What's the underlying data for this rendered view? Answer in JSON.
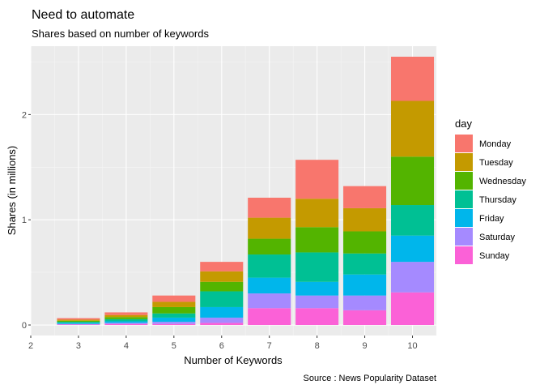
{
  "chart_data": {
    "type": "bar",
    "stacked": true,
    "title": "Need to automate",
    "subtitle": "Shares based on number of keywords",
    "xlabel": "Number of Keywords",
    "ylabel": "Shares (in millions)",
    "caption": "Source : News Popularity Dataset",
    "legend_title": "day",
    "legend_position": "right",
    "grid": true,
    "xlim": [
      2,
      10.5
    ],
    "ylim": [
      -0.1,
      2.65
    ],
    "x_ticks": [
      2,
      3,
      4,
      5,
      6,
      7,
      8,
      9,
      10
    ],
    "y_ticks": [
      0,
      1,
      2
    ],
    "categories": [
      3,
      4,
      5,
      6,
      7,
      8,
      9,
      10
    ],
    "series": [
      {
        "name": "Monday",
        "color": "#F8766D",
        "values": [
          0.015,
          0.025,
          0.06,
          0.09,
          0.19,
          0.37,
          0.21,
          0.42
        ]
      },
      {
        "name": "Tuesday",
        "color": "#C49A00",
        "values": [
          0.01,
          0.02,
          0.05,
          0.1,
          0.2,
          0.27,
          0.22,
          0.53
        ]
      },
      {
        "name": "Wednesday",
        "color": "#53B400",
        "values": [
          0.01,
          0.02,
          0.06,
          0.09,
          0.15,
          0.24,
          0.21,
          0.46
        ]
      },
      {
        "name": "Thursday",
        "color": "#00C094",
        "values": [
          0.01,
          0.02,
          0.04,
          0.15,
          0.22,
          0.28,
          0.2,
          0.29
        ]
      },
      {
        "name": "Friday",
        "color": "#00B6EB",
        "values": [
          0.01,
          0.015,
          0.04,
          0.1,
          0.15,
          0.13,
          0.2,
          0.25
        ]
      },
      {
        "name": "Saturday",
        "color": "#A58AFF",
        "values": [
          0.005,
          0.01,
          0.02,
          0.05,
          0.14,
          0.12,
          0.14,
          0.29
        ]
      },
      {
        "name": "Sunday",
        "color": "#FB61D7",
        "values": [
          0.005,
          0.01,
          0.01,
          0.02,
          0.16,
          0.16,
          0.14,
          0.31
        ]
      }
    ]
  }
}
